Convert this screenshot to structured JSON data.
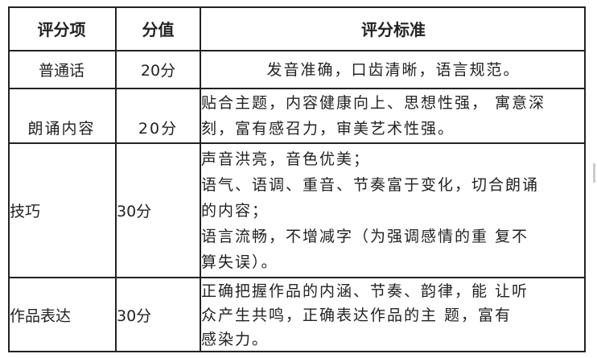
{
  "header": {
    "item": "评分项",
    "score": "分值",
    "criteria": "评分标准"
  },
  "rows": [
    {
      "item": "普通话",
      "score": "20分",
      "criteria": [
        "发音准确，口齿清晰，语言规范。"
      ]
    },
    {
      "item": "朗诵内容",
      "score": "20分",
      "criteria": [
        "贴合主题，内容健康向上、思想性强， 寓意深",
        "刻，富有感召力，审美艺术性强。"
      ]
    },
    {
      "item": "技巧",
      "score": "30分",
      "criteria": [
        "声音洪亮，音色优美；",
        "语气、语调、重音、节奏富于变化，切合朗诵",
        "的内容；",
        "语言流畅，不增减字（为强调感情的重 复不",
        "算失误）。"
      ]
    },
    {
      "item": "作品表达",
      "score": "30分",
      "criteria": [
        "正确把握作品的内涵、节奏、韵律，能 让听",
        "众产生共鸣，正确表达作品的主  题，富有",
        "感染力。"
      ]
    }
  ]
}
